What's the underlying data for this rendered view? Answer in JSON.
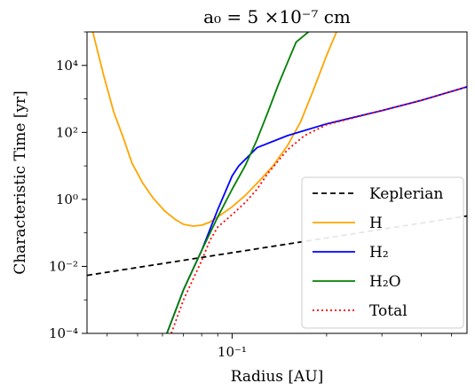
{
  "chart_data": {
    "type": "line",
    "title": "a₀ = 5 ×10⁻⁷ cm",
    "xlabel": "Radius [AU]",
    "ylabel": "Characteristic Time [yr]",
    "xscale": "log",
    "yscale": "log",
    "xlim": [
      0.0345,
      0.56
    ],
    "ylim": [
      0.0001,
      100000
    ],
    "x_tick_labels": [
      "10⁻¹"
    ],
    "y_tick_labels": [
      "10⁻⁴",
      "10⁻²",
      "10⁰",
      "10²",
      "10⁴"
    ],
    "grid": false,
    "legend": {
      "placement": "lower-right",
      "entries": [
        "Keplerian",
        "H",
        "H₂",
        "H₂O",
        "Total"
      ]
    },
    "series": [
      {
        "name": "Keplerian",
        "color": "#000000",
        "dash": "dashed",
        "x": [
          0.0345,
          0.56
        ],
        "y": [
          0.0054,
          0.32
        ]
      },
      {
        "name": "H",
        "color": "#FFA500",
        "dash": "solid",
        "x": [
          0.036,
          0.039,
          0.042,
          0.045,
          0.048,
          0.052,
          0.056,
          0.061,
          0.066,
          0.07,
          0.075,
          0.08,
          0.085,
          0.09,
          0.1,
          0.11,
          0.12,
          0.135,
          0.15,
          0.165,
          0.18,
          0.2,
          0.215
        ],
        "y": [
          100000,
          5000,
          400,
          70,
          12,
          3,
          1.1,
          0.45,
          0.25,
          0.18,
          0.16,
          0.17,
          0.21,
          0.3,
          0.6,
          1.3,
          3,
          10,
          40,
          200,
          1500,
          20000,
          100000
        ]
      },
      {
        "name": "H₂",
        "color": "#0000FF",
        "dash": "solid",
        "x": [
          0.062,
          0.07,
          0.08,
          0.09,
          0.1,
          0.105,
          0.12,
          0.15,
          0.2,
          0.3,
          0.4,
          0.56
        ],
        "y": [
          0.0001,
          0.002,
          0.03,
          0.5,
          5,
          10,
          35,
          80,
          180,
          450,
          900,
          2300
        ]
      },
      {
        "name": "H₂O",
        "color": "#008000",
        "dash": "solid",
        "x": [
          0.062,
          0.07,
          0.08,
          0.09,
          0.1,
          0.11,
          0.12,
          0.13,
          0.14,
          0.15,
          0.16,
          0.175
        ],
        "y": [
          0.0001,
          0.002,
          0.03,
          0.3,
          2,
          10,
          60,
          400,
          2500,
          12000,
          50000,
          100000
        ]
      },
      {
        "name": "Total",
        "color": "#FF0000",
        "dash": "dotted",
        "x": [
          0.064,
          0.07,
          0.08,
          0.085,
          0.09,
          0.1,
          0.11,
          0.12,
          0.13,
          0.15,
          0.17,
          0.2,
          0.3,
          0.4,
          0.56
        ],
        "y": [
          0.0001,
          0.001,
          0.015,
          0.06,
          0.15,
          0.35,
          0.8,
          2,
          6,
          30,
          80,
          170,
          450,
          900,
          2300
        ]
      }
    ]
  }
}
